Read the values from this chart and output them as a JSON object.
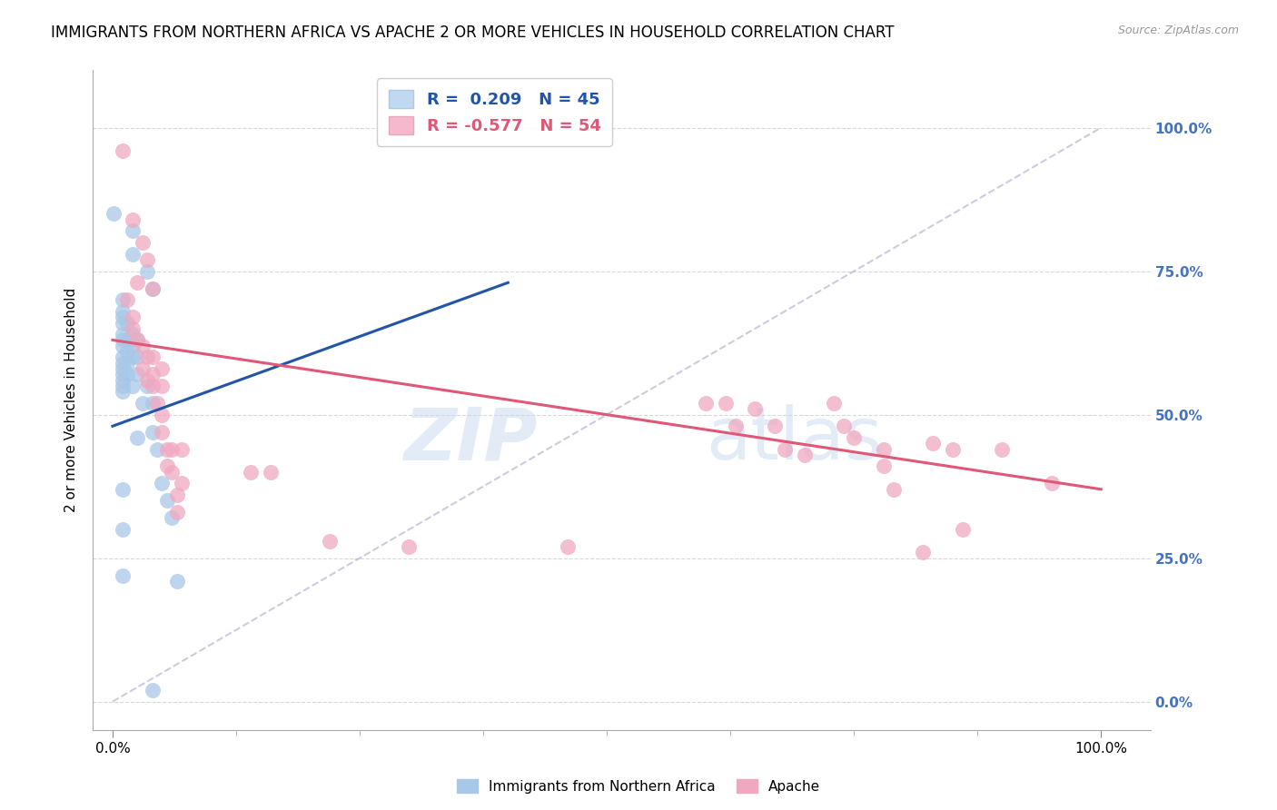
{
  "title": "IMMIGRANTS FROM NORTHERN AFRICA VS APACHE 2 OR MORE VEHICLES IN HOUSEHOLD CORRELATION CHART",
  "source": "Source: ZipAtlas.com",
  "ylabel": "2 or more Vehicles in Household",
  "legend_blue_r": "0.209",
  "legend_blue_n": "45",
  "legend_pink_r": "-0.577",
  "legend_pink_n": "54",
  "legend_label_blue": "Immigrants from Northern Africa",
  "legend_label_pink": "Apache",
  "watermark_part1": "ZIP",
  "watermark_part2": "atlas",
  "blue_color": "#a8c8e8",
  "blue_line_color": "#2255aa",
  "pink_color": "#f0a8c0",
  "pink_line_color": "#e05878",
  "blue_scatter": [
    [
      0.001,
      0.85
    ],
    [
      0.02,
      0.78
    ],
    [
      0.02,
      0.82
    ],
    [
      0.035,
      0.75
    ],
    [
      0.04,
      0.72
    ],
    [
      0.01,
      0.7
    ],
    [
      0.01,
      0.66
    ],
    [
      0.01,
      0.67
    ],
    [
      0.01,
      0.68
    ],
    [
      0.01,
      0.64
    ],
    [
      0.01,
      0.63
    ],
    [
      0.01,
      0.62
    ],
    [
      0.01,
      0.6
    ],
    [
      0.01,
      0.59
    ],
    [
      0.01,
      0.58
    ],
    [
      0.01,
      0.57
    ],
    [
      0.01,
      0.56
    ],
    [
      0.01,
      0.55
    ],
    [
      0.01,
      0.54
    ],
    [
      0.015,
      0.66
    ],
    [
      0.015,
      0.63
    ],
    [
      0.015,
      0.61
    ],
    [
      0.015,
      0.59
    ],
    [
      0.015,
      0.57
    ],
    [
      0.02,
      0.64
    ],
    [
      0.02,
      0.62
    ],
    [
      0.02,
      0.6
    ],
    [
      0.02,
      0.55
    ],
    [
      0.025,
      0.63
    ],
    [
      0.025,
      0.6
    ],
    [
      0.025,
      0.57
    ],
    [
      0.025,
      0.46
    ],
    [
      0.03,
      0.52
    ],
    [
      0.035,
      0.55
    ],
    [
      0.04,
      0.52
    ],
    [
      0.04,
      0.47
    ],
    [
      0.045,
      0.44
    ],
    [
      0.05,
      0.38
    ],
    [
      0.055,
      0.35
    ],
    [
      0.06,
      0.32
    ],
    [
      0.065,
      0.21
    ],
    [
      0.04,
      0.02
    ],
    [
      0.01,
      0.37
    ],
    [
      0.01,
      0.3
    ],
    [
      0.01,
      0.22
    ]
  ],
  "pink_scatter": [
    [
      0.01,
      0.96
    ],
    [
      0.02,
      0.84
    ],
    [
      0.03,
      0.8
    ],
    [
      0.035,
      0.77
    ],
    [
      0.025,
      0.73
    ],
    [
      0.04,
      0.72
    ],
    [
      0.015,
      0.7
    ],
    [
      0.02,
      0.67
    ],
    [
      0.02,
      0.65
    ],
    [
      0.025,
      0.63
    ],
    [
      0.03,
      0.62
    ],
    [
      0.035,
      0.6
    ],
    [
      0.03,
      0.58
    ],
    [
      0.035,
      0.56
    ],
    [
      0.04,
      0.6
    ],
    [
      0.04,
      0.57
    ],
    [
      0.04,
      0.55
    ],
    [
      0.045,
      0.52
    ],
    [
      0.05,
      0.58
    ],
    [
      0.05,
      0.55
    ],
    [
      0.05,
      0.5
    ],
    [
      0.05,
      0.47
    ],
    [
      0.055,
      0.44
    ],
    [
      0.055,
      0.41
    ],
    [
      0.06,
      0.44
    ],
    [
      0.06,
      0.4
    ],
    [
      0.065,
      0.36
    ],
    [
      0.065,
      0.33
    ],
    [
      0.07,
      0.44
    ],
    [
      0.07,
      0.38
    ],
    [
      0.14,
      0.4
    ],
    [
      0.16,
      0.4
    ],
    [
      0.22,
      0.28
    ],
    [
      0.3,
      0.27
    ],
    [
      0.46,
      0.27
    ],
    [
      0.6,
      0.52
    ],
    [
      0.62,
      0.52
    ],
    [
      0.63,
      0.48
    ],
    [
      0.65,
      0.51
    ],
    [
      0.67,
      0.48
    ],
    [
      0.68,
      0.44
    ],
    [
      0.7,
      0.43
    ],
    [
      0.73,
      0.52
    ],
    [
      0.74,
      0.48
    ],
    [
      0.75,
      0.46
    ],
    [
      0.78,
      0.44
    ],
    [
      0.78,
      0.41
    ],
    [
      0.79,
      0.37
    ],
    [
      0.82,
      0.26
    ],
    [
      0.83,
      0.45
    ],
    [
      0.85,
      0.44
    ],
    [
      0.86,
      0.3
    ],
    [
      0.9,
      0.44
    ],
    [
      0.95,
      0.38
    ]
  ],
  "blue_trendline_x": [
    0.0,
    0.4
  ],
  "blue_trendline_y": [
    0.48,
    0.73
  ],
  "pink_trendline_x": [
    0.0,
    1.0
  ],
  "pink_trendline_y": [
    0.63,
    0.37
  ],
  "dashed_line_x": [
    0.0,
    1.0
  ],
  "dashed_line_y": [
    0.0,
    1.0
  ],
  "xlim": [
    -0.02,
    1.05
  ],
  "ylim": [
    -0.05,
    1.1
  ],
  "xticks": [
    0.0,
    1.0
  ],
  "xtick_labels": [
    "0.0%",
    "100.0%"
  ],
  "xtick_minor": [
    0.125,
    0.25,
    0.375,
    0.5,
    0.625,
    0.75,
    0.875
  ],
  "yticks": [
    0.0,
    0.25,
    0.5,
    0.75,
    1.0
  ],
  "ytick_labels": [
    "0.0%",
    "25.0%",
    "50.0%",
    "75.0%",
    "100.0%"
  ],
  "background_color": "#ffffff",
  "grid_color": "#d8d8d8",
  "title_fontsize": 12,
  "axis_label_fontsize": 11,
  "tick_label_fontsize": 11,
  "right_ytick_color": "#4472c4"
}
